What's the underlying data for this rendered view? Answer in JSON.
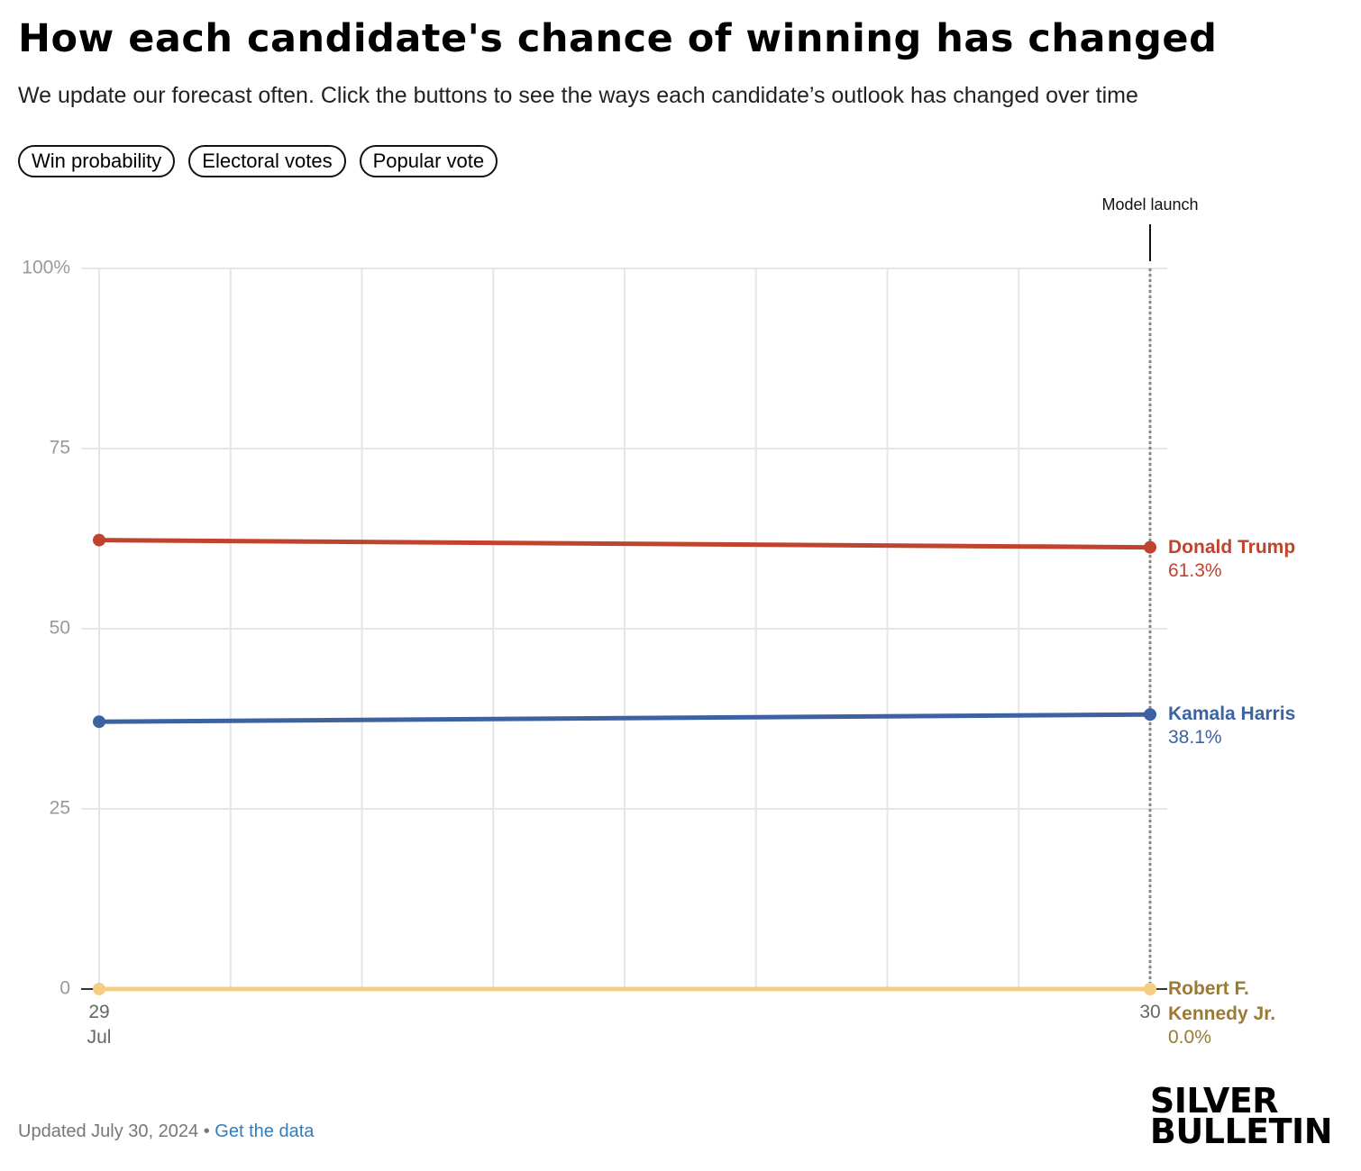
{
  "header": {
    "title": "How each candidate's chance of winning has changed",
    "subtitle": "We update our forecast often. Click the buttons to see the ways each candidate’s outlook has changed over time",
    "buttons": [
      "Win probability",
      "Electoral votes",
      "Popular vote"
    ]
  },
  "chart_data": {
    "type": "line",
    "categories": [
      "29 Jul",
      "30"
    ],
    "series": [
      {
        "name": "Donald Trump",
        "color": "#c0432d",
        "values": [
          62.3,
          61.3
        ],
        "value_labels": [
          null,
          "61.3%"
        ]
      },
      {
        "name": "Kamala Harris",
        "color": "#3d62a4",
        "values": [
          37.1,
          38.1
        ],
        "value_labels": [
          null,
          "38.1%"
        ]
      },
      {
        "name": "Robert F. Kennedy Jr.",
        "color": "#f5cd82",
        "values": [
          0,
          0
        ],
        "value_labels": [
          null,
          "0.0%"
        ]
      }
    ],
    "ylim": [
      0,
      100
    ],
    "yticks": [
      0,
      25,
      50,
      75,
      {
        "value": 100,
        "label": "100%"
      }
    ],
    "grid": true,
    "annotation": "Model launch"
  },
  "footer": {
    "updated": "Updated July 30, 2024",
    "separator": "•",
    "link": "Get the data",
    "logo": [
      "SILVER",
      "BULLETIN"
    ]
  }
}
